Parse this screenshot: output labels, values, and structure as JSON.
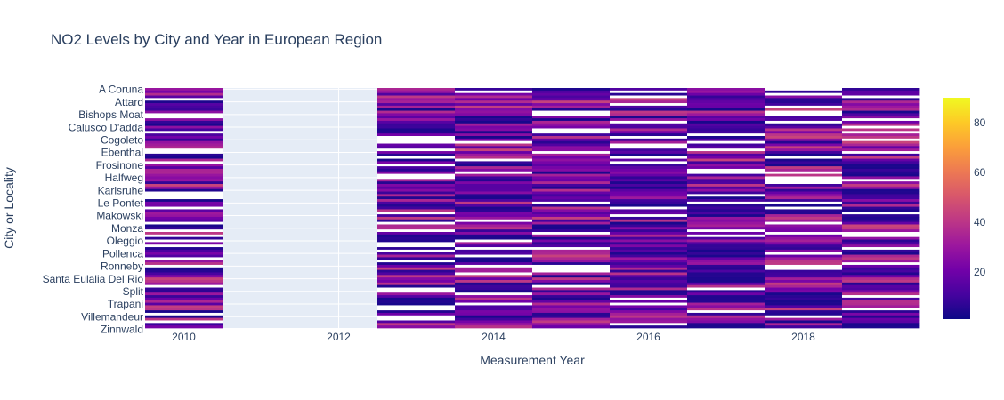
{
  "chart_data": {
    "type": "heatmap",
    "title": "NO2 Levels by City and Year in European Region",
    "xlabel": "Measurement Year",
    "ylabel": "City or Locality",
    "x_ticks": [
      2010,
      2012,
      2014,
      2016,
      2018
    ],
    "years": [
      2010,
      2011,
      2012,
      2013,
      2014,
      2015,
      2016,
      2017,
      2018,
      2019
    ],
    "years_without_data": [
      2011,
      2012
    ],
    "y_tick_labels": [
      "A Coruna",
      "Attard",
      "Bishops Moat",
      "Calusco D'adda",
      "Cogoleto",
      "Ebenthal",
      "Frosinone",
      "Halfweg",
      "Karlsruhe",
      "Le Pontet",
      "Makowski",
      "Monza",
      "Oleggio",
      "Pollenca",
      "Ronneby",
      "Santa Eulalia Del Rio",
      "Split",
      "Trapani",
      "Villemandeur",
      "Zinnwald"
    ],
    "city_count": 95,
    "colorscale": [
      "#0d0887",
      "#46039f",
      "#7201a8",
      "#9c179e",
      "#bd3786",
      "#d8576b",
      "#ed7953",
      "#fb9f3a",
      "#fdca26",
      "#f0f921"
    ],
    "colorbar_ticks": [
      20,
      40,
      60,
      80
    ],
    "zmin": 1,
    "zmax": 90,
    "plot_background": "#e5ecf6",
    "missing_color": "#ffffff"
  }
}
